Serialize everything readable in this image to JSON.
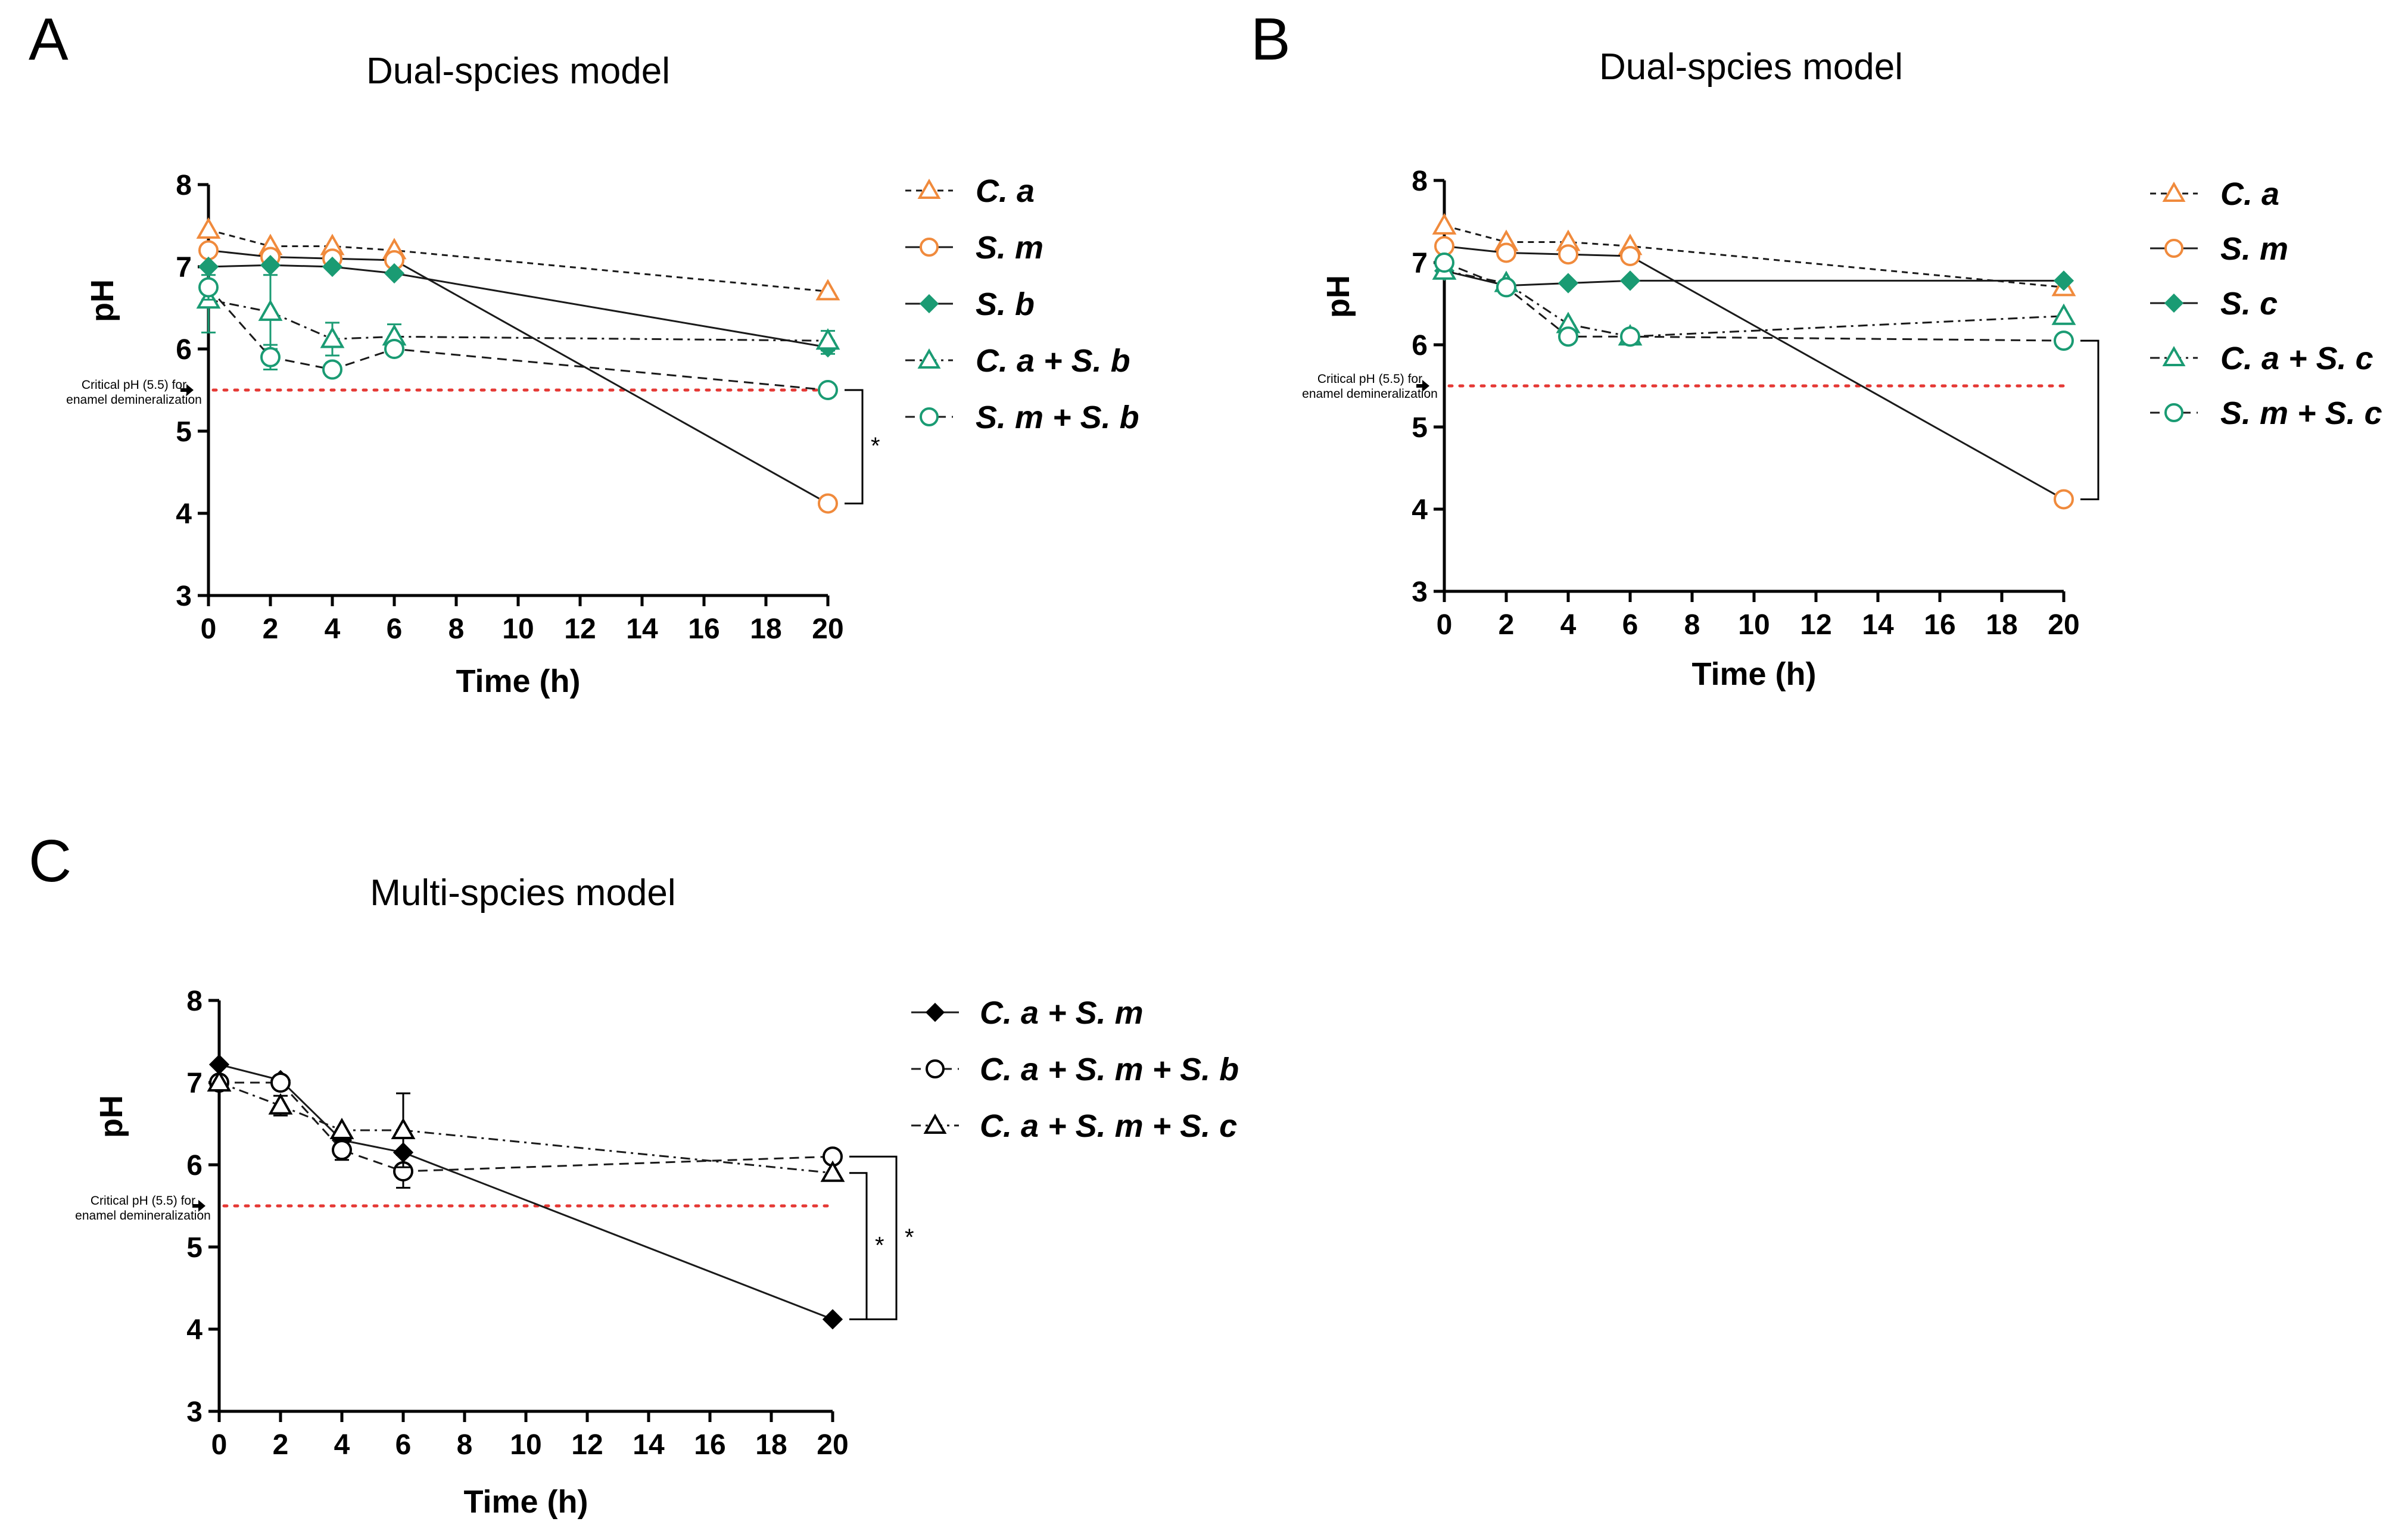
{
  "chart_data": [
    {
      "type": "line",
      "panel": "A",
      "title": "Dual-spcies model",
      "xlabel": "Time (h)",
      "ylabel": "pH",
      "xlim": [
        0,
        20
      ],
      "ylim": [
        3,
        8
      ],
      "xticks": [
        "0",
        "2",
        "4",
        "6",
        "8",
        "10",
        "12",
        "14",
        "16",
        "18",
        "20"
      ],
      "yticks": [
        "3",
        "4",
        "5",
        "6",
        "7",
        "8"
      ],
      "critical": {
        "value": 5.5,
        "label_line1": "Critical pH (5.5) for",
        "label_line2": "enamel demineralization"
      },
      "series": [
        {
          "name": "C. a",
          "color": "#f08a3c",
          "marker": "triangle",
          "filled": false,
          "dash": "short",
          "x": [
            0,
            2,
            4,
            6,
            20
          ],
          "y": [
            7.45,
            7.25,
            7.25,
            7.2,
            6.7
          ],
          "err": [
            0,
            0,
            0,
            0,
            0
          ]
        },
        {
          "name": "S. m",
          "color": "#f08a3c",
          "marker": "circle",
          "filled": false,
          "dash": "solid",
          "x": [
            0,
            2,
            4,
            6,
            20
          ],
          "y": [
            7.2,
            7.12,
            7.1,
            7.08,
            4.12
          ],
          "err": [
            0,
            0,
            0,
            0,
            0
          ]
        },
        {
          "name": "S. b",
          "color": "#1a9b73",
          "marker": "diamond",
          "filled": true,
          "dash": "solid",
          "x": [
            0,
            2,
            4,
            6,
            20
          ],
          "y": [
            7.0,
            7.02,
            7.0,
            6.92,
            6.02
          ],
          "err": [
            0,
            0,
            0,
            0,
            0.08
          ]
        },
        {
          "name": "C. a + S. b",
          "color": "#1a9b73",
          "marker": "triangle",
          "filled": false,
          "dash": "dashdot",
          "x": [
            0,
            2,
            4,
            6,
            20
          ],
          "y": [
            6.6,
            6.45,
            6.12,
            6.15,
            6.1
          ],
          "err": [
            0.4,
            0.45,
            0.2,
            0.15,
            0.12
          ]
        },
        {
          "name": "S. m + S. b",
          "color": "#1a9b73",
          "marker": "circle",
          "filled": false,
          "dash": "dashed",
          "x": [
            0,
            2,
            4,
            6,
            20
          ],
          "y": [
            6.75,
            5.9,
            5.75,
            6.0,
            5.5
          ],
          "err": [
            0.15,
            0.15,
            0.08,
            0.05,
            0
          ]
        }
      ],
      "significance": [
        {
          "from_series": "S. m",
          "to_series": "S. m + S. b",
          "label": "*"
        }
      ]
    },
    {
      "type": "line",
      "panel": "B",
      "title": "Dual-spcies model",
      "xlabel": "Time (h)",
      "ylabel": "pH",
      "xlim": [
        0,
        20
      ],
      "ylim": [
        3,
        8
      ],
      "xticks": [
        "0",
        "2",
        "4",
        "6",
        "8",
        "10",
        "12",
        "14",
        "16",
        "18",
        "20"
      ],
      "yticks": [
        "3",
        "4",
        "5",
        "6",
        "7",
        "8"
      ],
      "critical": {
        "value": 5.5,
        "label_line1": "Critical pH (5.5) for",
        "label_line2": "enamel demineralization"
      },
      "series": [
        {
          "name": "C. a",
          "color": "#f08a3c",
          "marker": "triangle",
          "filled": false,
          "dash": "short",
          "x": [
            0,
            2,
            4,
            6,
            20
          ],
          "y": [
            7.45,
            7.25,
            7.25,
            7.2,
            6.7
          ],
          "err": [
            0,
            0,
            0,
            0,
            0
          ]
        },
        {
          "name": "S. m",
          "color": "#f08a3c",
          "marker": "circle",
          "filled": false,
          "dash": "solid",
          "x": [
            0,
            2,
            4,
            6,
            20
          ],
          "y": [
            7.2,
            7.12,
            7.1,
            7.08,
            4.12
          ],
          "err": [
            0,
            0,
            0,
            0,
            0
          ]
        },
        {
          "name": "S. c",
          "color": "#1a9b73",
          "marker": "diamond",
          "filled": true,
          "dash": "solid",
          "x": [
            0,
            2,
            4,
            6,
            20
          ],
          "y": [
            6.9,
            6.72,
            6.75,
            6.78,
            6.78
          ],
          "err": [
            0,
            0,
            0,
            0,
            0
          ]
        },
        {
          "name": "C. a + S. c",
          "color": "#1a9b73",
          "marker": "triangle",
          "filled": false,
          "dash": "dashdot",
          "x": [
            0,
            2,
            4,
            6,
            20
          ],
          "y": [
            6.9,
            6.75,
            6.25,
            6.1,
            6.35
          ],
          "err": [
            0,
            0,
            0,
            0,
            0
          ]
        },
        {
          "name": "S. m + S. c",
          "color": "#1a9b73",
          "marker": "circle",
          "filled": false,
          "dash": "dashed",
          "x": [
            0,
            2,
            4,
            6,
            20
          ],
          "y": [
            7.0,
            6.7,
            6.1,
            6.1,
            6.05
          ],
          "err": [
            0,
            0,
            0,
            0,
            0
          ]
        }
      ],
      "significance": [
        {
          "from_series": "S. m",
          "to_series": "S. m + S. c",
          "label": ""
        }
      ]
    },
    {
      "type": "line",
      "panel": "C",
      "title": "Multi-spcies model",
      "xlabel": "Time (h)",
      "ylabel": "pH",
      "xlim": [
        0,
        20
      ],
      "ylim": [
        3,
        8
      ],
      "xticks": [
        "0",
        "2",
        "4",
        "6",
        "8",
        "10",
        "12",
        "14",
        "16",
        "18",
        "20"
      ],
      "yticks": [
        "3",
        "4",
        "5",
        "6",
        "7",
        "8"
      ],
      "critical": {
        "value": 5.5,
        "label_line1": "Critical pH (5.5) for",
        "label_line2": "enamel demineralization"
      },
      "series": [
        {
          "name": "C. a + S. m",
          "color": "#000000",
          "marker": "diamond",
          "filled": true,
          "dash": "solid",
          "x": [
            0,
            2,
            4,
            6,
            20
          ],
          "y": [
            7.22,
            7.03,
            6.3,
            6.15,
            4.12
          ],
          "err": [
            0,
            0,
            0,
            0,
            0
          ]
        },
        {
          "name": "C. a + S. m + S. b",
          "color": "#000000",
          "marker": "circle",
          "filled": false,
          "dash": "dashed",
          "x": [
            0,
            2,
            4,
            6,
            20
          ],
          "y": [
            7.0,
            7.0,
            6.18,
            5.92,
            6.1
          ],
          "err": [
            0,
            0,
            0.12,
            0.2,
            0
          ]
        },
        {
          "name": "C. a + S. m + S. c",
          "color": "#000000",
          "marker": "triangle",
          "filled": false,
          "dash": "dashdot",
          "x": [
            0,
            2,
            4,
            6,
            20
          ],
          "y": [
            7.0,
            6.72,
            6.42,
            6.42,
            5.9
          ],
          "err": [
            0,
            0.12,
            0,
            0.45,
            0
          ]
        }
      ],
      "significance": [
        {
          "from_series": "C. a + S. m",
          "to_series": "C. a + S. m + S. c",
          "label": "*"
        },
        {
          "from_series": "C. a + S. m",
          "to_series": "C. a + S. m + S. b",
          "label": "*"
        }
      ]
    }
  ]
}
